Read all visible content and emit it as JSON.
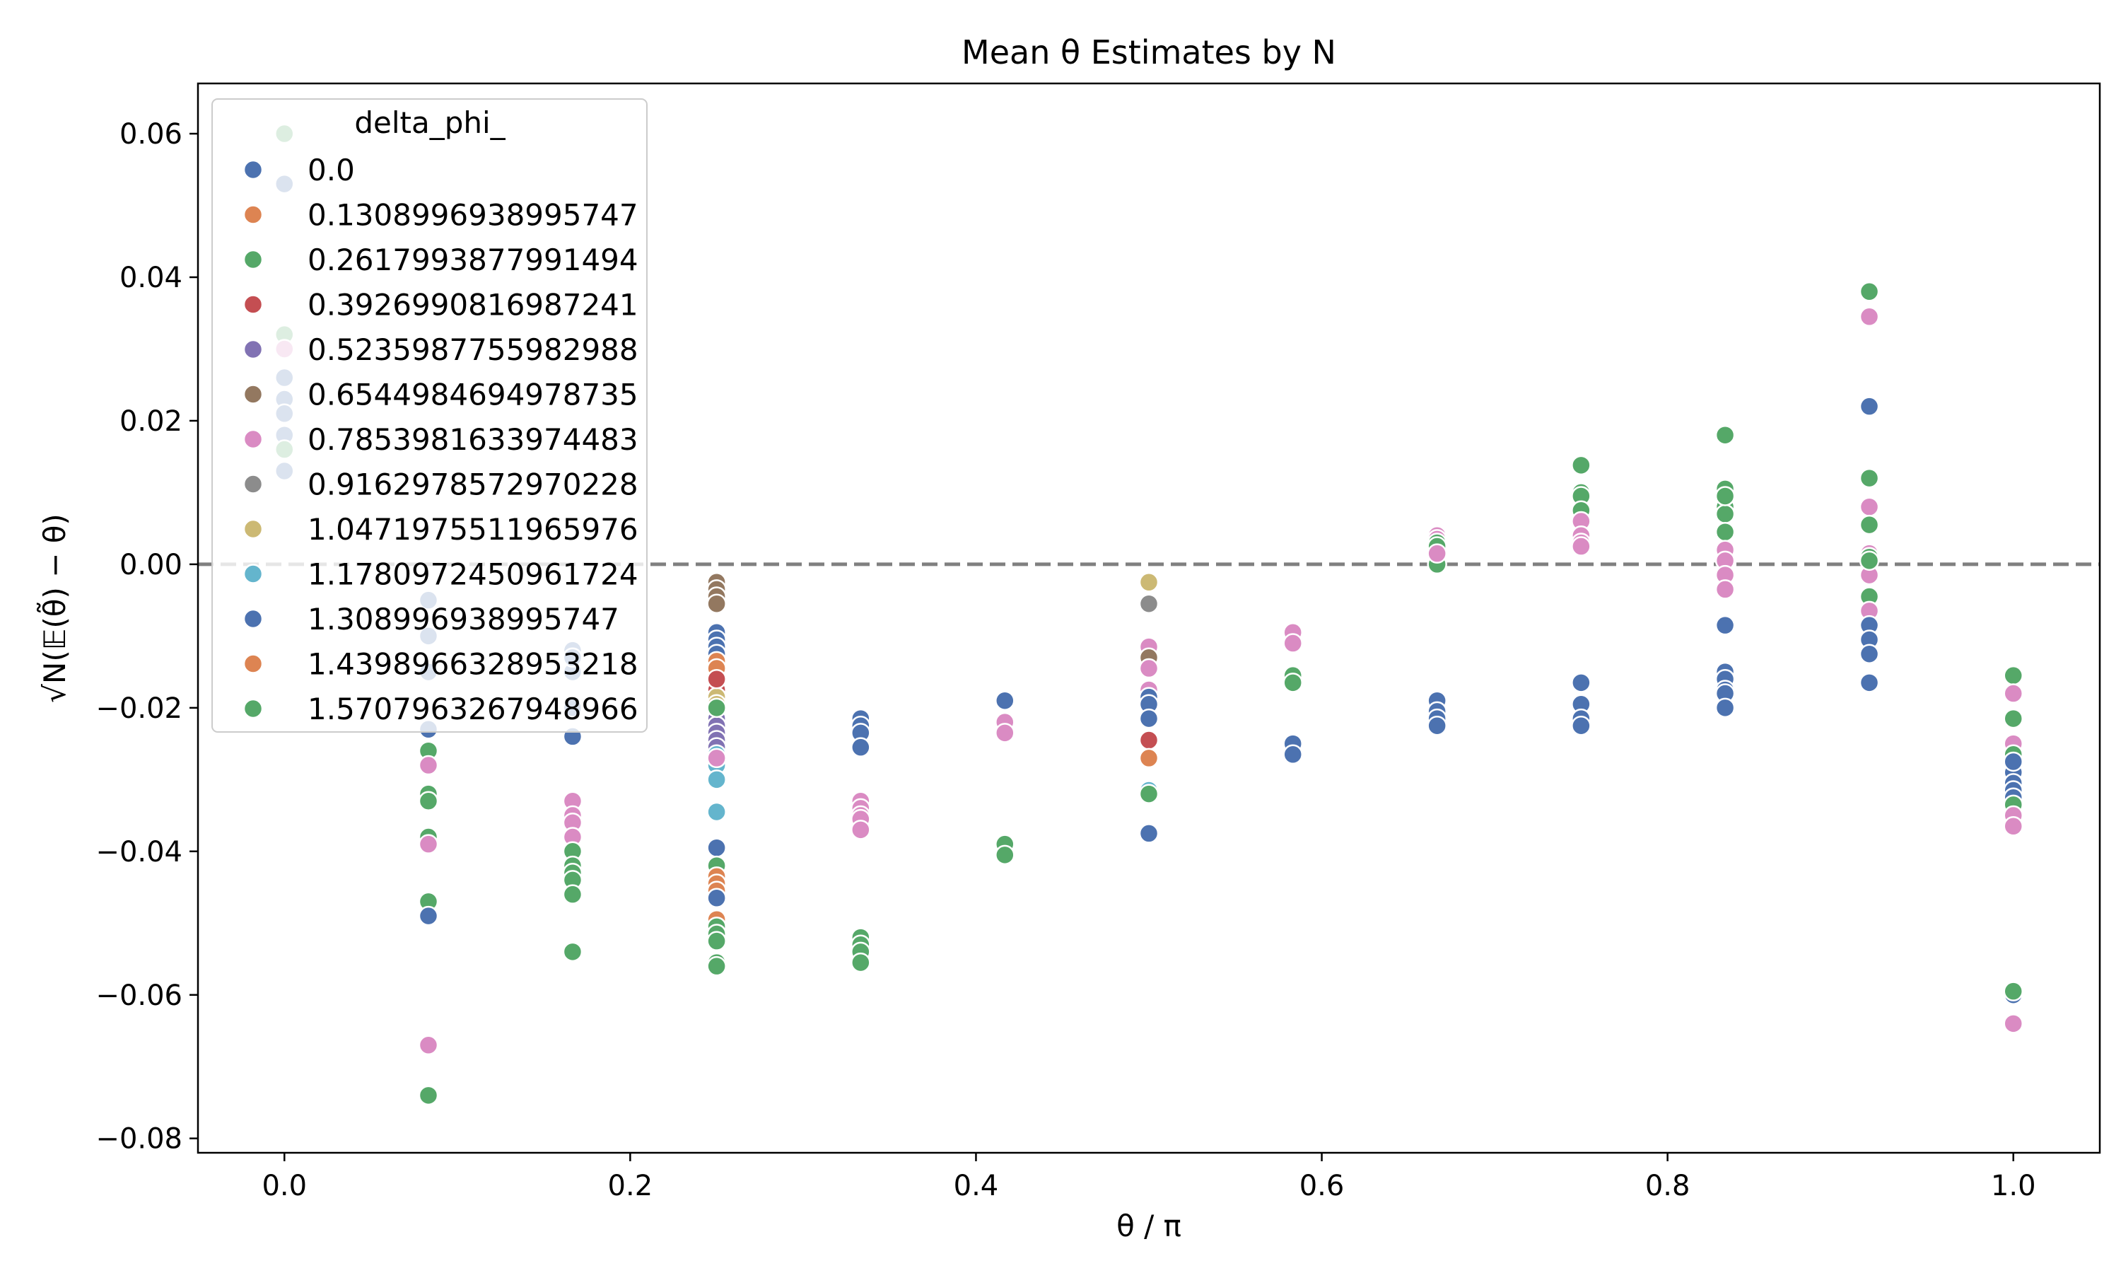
{
  "chart_data": {
    "type": "scatter",
    "title": "Mean θ Estimates by N",
    "xlabel": "θ / π",
    "ylabel": "√N(𝔼(θ̃) − θ)",
    "xlim": [
      -0.05,
      1.05
    ],
    "ylim": [
      -0.082,
      0.067
    ],
    "x_ticks": [
      "0.0",
      "0.2",
      "0.4",
      "0.6",
      "0.8",
      "1.0"
    ],
    "y_ticks": [
      "−0.08",
      "−0.06",
      "−0.04",
      "−0.02",
      "0.00",
      "0.02",
      "0.04",
      "0.06"
    ],
    "reference_line": {
      "y": 0,
      "style": "dashed",
      "color": "#808080"
    },
    "grid": false,
    "legend": {
      "title": "delta_phi_",
      "placement": "top-left",
      "entries": [
        {
          "label": "0.0",
          "color": "#4c72b0"
        },
        {
          "label": "0.1308996938995747",
          "color": "#dd8452"
        },
        {
          "label": "0.2617993877991494",
          "color": "#55a868"
        },
        {
          "label": "0.3926990816987241",
          "color": "#c44e52"
        },
        {
          "label": "0.5235987755982988",
          "color": "#8172b3"
        },
        {
          "label": "0.6544984694978735",
          "color": "#937860"
        },
        {
          "label": "0.7853981633974483",
          "color": "#da8bc3"
        },
        {
          "label": "0.9162978572970228",
          "color": "#8c8c8c"
        },
        {
          "label": "1.0471975511965976",
          "color": "#ccb974"
        },
        {
          "label": "1.1780972450961724",
          "color": "#64b5cd"
        },
        {
          "label": "1.308996938995747",
          "color": "#4c72b0"
        },
        {
          "label": "1.4398966328953218",
          "color": "#dd8452"
        },
        {
          "label": "1.5707963267948966",
          "color": "#55a868"
        }
      ]
    },
    "series": [
      {
        "x": [
          0.0,
          0.0,
          0.0,
          0.0,
          0.0,
          0.0,
          0.0,
          0.0,
          0.0,
          0.0
        ],
        "y": [
          0.06,
          0.053,
          0.032,
          0.03,
          0.026,
          0.023,
          0.021,
          0.018,
          0.016,
          0.013
        ],
        "colors": [
          2,
          0,
          2,
          6,
          0,
          10,
          0,
          0,
          2,
          0
        ]
      },
      {
        "x": [
          0.0833,
          0.0833,
          0.0833,
          0.0833,
          0.0833,
          0.0833,
          0.0833,
          0.0833,
          0.0833,
          0.0833,
          0.0833,
          0.0833,
          0.0833,
          0.0833
        ],
        "y": [
          -0.005,
          -0.01,
          -0.015,
          -0.023,
          -0.026,
          -0.028,
          -0.032,
          -0.033,
          -0.038,
          -0.039,
          -0.047,
          -0.049,
          -0.067,
          -0.074
        ],
        "colors": [
          0,
          0,
          0,
          0,
          2,
          6,
          2,
          2,
          2,
          6,
          2,
          0,
          6,
          2
        ]
      },
      {
        "x": [
          0.1667,
          0.1667,
          0.1667,
          0.1667,
          0.1667,
          0.1667,
          0.1667,
          0.1667,
          0.1667,
          0.1667,
          0.1667,
          0.1667,
          0.1667,
          0.1667,
          0.1667
        ],
        "y": [
          -0.012,
          -0.015,
          -0.02,
          -0.024,
          -0.033,
          -0.035,
          -0.036,
          -0.038,
          -0.04,
          -0.042,
          -0.043,
          -0.044,
          -0.046,
          -0.054,
          -0.013
        ],
        "colors": [
          0,
          0,
          0,
          0,
          6,
          6,
          6,
          6,
          2,
          2,
          2,
          2,
          2,
          2,
          10
        ]
      },
      {
        "x": [
          0.25,
          0.25,
          0.25,
          0.25,
          0.25,
          0.25,
          0.25,
          0.25,
          0.25,
          0.25,
          0.25,
          0.25,
          0.25,
          0.25,
          0.25,
          0.25,
          0.25,
          0.25,
          0.25,
          0.25,
          0.25,
          0.25,
          0.25,
          0.25,
          0.25,
          0.25,
          0.25,
          0.25,
          0.25,
          0.25,
          0.25,
          0.25,
          0.25,
          0.25,
          0.25,
          0.25,
          0.25,
          0.25
        ],
        "y": [
          -0.0025,
          -0.0035,
          -0.0045,
          -0.0055,
          -0.0095,
          -0.0105,
          -0.0115,
          -0.0125,
          -0.0135,
          -0.0145,
          -0.0165,
          -0.0175,
          -0.0185,
          -0.0195,
          -0.0215,
          -0.0225,
          -0.0235,
          -0.0245,
          -0.0255,
          -0.0265,
          -0.028,
          -0.03,
          -0.0345,
          -0.0395,
          -0.042,
          -0.0435,
          -0.0445,
          -0.0455,
          -0.0465,
          -0.0495,
          -0.0505,
          -0.0515,
          -0.0525,
          -0.0555,
          -0.056,
          -0.02,
          -0.016,
          -0.027
        ],
        "colors": [
          5,
          5,
          5,
          5,
          0,
          0,
          0,
          0,
          1,
          1,
          3,
          3,
          8,
          8,
          4,
          4,
          4,
          4,
          4,
          9,
          9,
          9,
          9,
          0,
          2,
          1,
          1,
          1,
          0,
          1,
          2,
          2,
          2,
          2,
          2,
          2,
          3,
          6
        ]
      },
      {
        "x": [
          0.3333,
          0.3333,
          0.3333,
          0.3333,
          0.3333,
          0.3333,
          0.3333,
          0.3333,
          0.3333,
          0.3333,
          0.3333,
          0.3333,
          0.3333
        ],
        "y": [
          -0.0215,
          -0.0225,
          -0.0235,
          -0.0255,
          -0.033,
          -0.034,
          -0.035,
          -0.0355,
          -0.037,
          -0.052,
          -0.053,
          -0.054,
          -0.0555
        ],
        "colors": [
          0,
          0,
          0,
          0,
          6,
          6,
          6,
          6,
          6,
          2,
          2,
          2,
          2
        ]
      },
      {
        "x": [
          0.4167,
          0.4167,
          0.4167,
          0.4167,
          0.4167
        ],
        "y": [
          -0.019,
          -0.022,
          -0.0235,
          -0.039,
          -0.0405
        ],
        "colors": [
          0,
          6,
          6,
          2,
          2
        ]
      },
      {
        "x": [
          0.5,
          0.5,
          0.5,
          0.5,
          0.5,
          0.5,
          0.5,
          0.5,
          0.5,
          0.5,
          0.5,
          0.5,
          0.5,
          0.5
        ],
        "y": [
          -0.0025,
          -0.0055,
          -0.0115,
          -0.013,
          -0.0145,
          -0.0175,
          -0.0185,
          -0.0195,
          -0.0215,
          -0.0245,
          -0.027,
          -0.0315,
          -0.0375,
          -0.032
        ],
        "colors": [
          8,
          7,
          6,
          5,
          6,
          6,
          0,
          0,
          0,
          3,
          1,
          9,
          0,
          2
        ]
      },
      {
        "x": [
          0.5833,
          0.5833,
          0.5833,
          0.5833,
          0.5833,
          0.5833
        ],
        "y": [
          -0.0095,
          -0.011,
          -0.0155,
          -0.0165,
          -0.025,
          -0.0265
        ],
        "colors": [
          6,
          6,
          2,
          2,
          0,
          0
        ]
      },
      {
        "x": [
          0.6667,
          0.6667,
          0.6667,
          0.6667,
          0.6667,
          0.6667,
          0.6667,
          0.6667,
          0.6667,
          0.6667,
          0.6667
        ],
        "y": [
          0.004,
          0.0035,
          0.003,
          0.0025,
          0.0005,
          0.0,
          -0.019,
          -0.0205,
          -0.0215,
          -0.0225,
          0.0015
        ],
        "colors": [
          6,
          6,
          2,
          2,
          6,
          2,
          0,
          0,
          0,
          0,
          6
        ]
      },
      {
        "x": [
          0.75,
          0.75,
          0.75,
          0.75,
          0.75,
          0.75,
          0.75,
          0.75,
          0.75,
          0.75,
          0.75,
          0.75
        ],
        "y": [
          0.0138,
          0.01,
          0.0095,
          0.0075,
          0.006,
          0.004,
          0.003,
          0.0025,
          -0.0165,
          -0.0195,
          -0.0215,
          -0.0225
        ],
        "colors": [
          2,
          2,
          2,
          2,
          6,
          6,
          6,
          6,
          0,
          0,
          0,
          0
        ]
      },
      {
        "x": [
          0.8333,
          0.8333,
          0.8333,
          0.8333,
          0.8333,
          0.8333,
          0.8333,
          0.8333,
          0.8333,
          0.8333,
          0.8333,
          0.8333,
          0.8333,
          0.8333,
          0.8333,
          0.8333
        ],
        "y": [
          0.018,
          0.0105,
          0.008,
          0.007,
          0.0045,
          0.002,
          0.0005,
          -0.0015,
          -0.0035,
          -0.0085,
          -0.015,
          -0.016,
          -0.0175,
          -0.018,
          -0.02,
          0.0095
        ],
        "colors": [
          2,
          2,
          2,
          2,
          2,
          6,
          6,
          6,
          6,
          0,
          0,
          0,
          0,
          0,
          0,
          2
        ]
      },
      {
        "x": [
          0.9167,
          0.9167,
          0.9167,
          0.9167,
          0.9167,
          0.9167,
          0.9167,
          0.9167,
          0.9167,
          0.9167,
          0.9167,
          0.9167,
          0.9167,
          0.9167,
          0.9167,
          0.9167
        ],
        "y": [
          0.038,
          0.0345,
          0.022,
          0.012,
          0.008,
          0.0055,
          0.0015,
          0.001,
          -0.0015,
          -0.0045,
          -0.0065,
          -0.0085,
          -0.0105,
          -0.0125,
          -0.0165,
          0.0005
        ],
        "colors": [
          2,
          6,
          0,
          2,
          6,
          2,
          6,
          2,
          6,
          2,
          6,
          0,
          0,
          0,
          0,
          2
        ]
      },
      {
        "x": [
          1.0,
          1.0,
          1.0,
          1.0,
          1.0,
          1.0,
          1.0,
          1.0,
          1.0,
          1.0,
          1.0,
          1.0,
          1.0,
          1.0,
          1.0,
          1.0
        ],
        "y": [
          -0.0155,
          -0.018,
          -0.0215,
          -0.025,
          -0.0265,
          -0.029,
          -0.0305,
          -0.0315,
          -0.0325,
          -0.0335,
          -0.035,
          -0.0365,
          -0.06,
          -0.064,
          -0.0595,
          -0.0275
        ],
        "colors": [
          2,
          6,
          2,
          6,
          2,
          0,
          0,
          0,
          0,
          2,
          6,
          6,
          0,
          6,
          2,
          0
        ]
      }
    ]
  }
}
